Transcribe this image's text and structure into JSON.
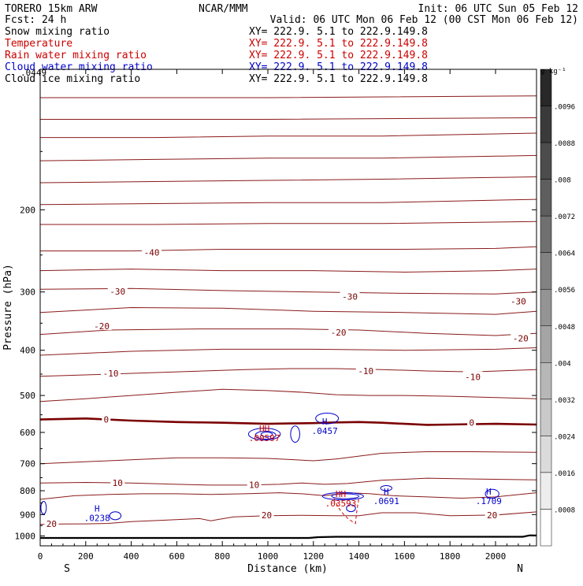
{
  "header": {
    "model": "TORERO  15km ARW",
    "center": "NCAR/MMM",
    "init": "Init: 06 UTC Sun 05 Feb 12",
    "fcst": "Fcst:   24 h",
    "valid": "Valid: 06 UTC Mon 06 Feb 12 (00 CST Mon 06 Feb 12)"
  },
  "legend": [
    {
      "label": "Snow mixing ratio",
      "xy": "",
      "color": "#000000"
    },
    {
      "label": "Temperature",
      "xy": "XY= 222.9.  5.1 to 222.9.149.8",
      "color": "#cc0000"
    },
    {
      "label": "Rain water mixing ratio",
      "xy": "XY= 222.9.  5.1 to 222.9.149.8",
      "color": "#cc0000"
    },
    {
      "label": "Cloud water mixing ratio",
      "xy": "XY= 222.9.  5.1 to 222.9.149.8",
      "color": "#0000cc"
    },
    {
      "label": "Cloud ice mixing ratio",
      "xy": "XY= 222.9.  5.1 to 222.9.149.8",
      "color": "#000000"
    }
  ],
  "snow_xy": "XY= 222.9.  5.1 to 222.9.149.8",
  "chart_data": {
    "type": "cross-section contour",
    "xlabel": "Distance (km)",
    "ylabel": "Pressure (hPa)",
    "xlim": [
      0,
      2180
    ],
    "ylim": [
      1050,
      100
    ],
    "x_ticks": [
      0,
      200,
      400,
      600,
      800,
      1000,
      1200,
      1400,
      1600,
      1800,
      2000
    ],
    "y_ticks": [
      200,
      300,
      400,
      500,
      600,
      700,
      800,
      900,
      1000
    ],
    "x_ends": {
      "left": "S",
      "right": "N"
    },
    "temperature_isotherms": [
      {
        "value": 20,
        "points": [
          [
            0,
            945
          ],
          [
            100,
            943
          ],
          [
            200,
            942
          ],
          [
            300,
            940
          ],
          [
            400,
            932
          ],
          [
            550,
            925
          ],
          [
            700,
            918
          ],
          [
            750,
            928
          ],
          [
            780,
            922
          ],
          [
            850,
            910
          ],
          [
            1000,
            905
          ],
          [
            1150,
            903
          ],
          [
            1300,
            905
          ],
          [
            1400,
            905
          ],
          [
            1500,
            892
          ],
          [
            1650,
            892
          ],
          [
            1800,
            905
          ],
          [
            2000,
            902
          ],
          [
            2180,
            888
          ]
        ]
      },
      {
        "value": 15,
        "points": [
          [
            0,
            835
          ],
          [
            150,
            820
          ],
          [
            300,
            815
          ],
          [
            450,
            812
          ],
          [
            600,
            812
          ],
          [
            750,
            815
          ],
          [
            900,
            812
          ],
          [
            1050,
            808
          ],
          [
            1150,
            812
          ],
          [
            1250,
            820
          ],
          [
            1350,
            808
          ],
          [
            1450,
            812
          ],
          [
            1550,
            820
          ],
          [
            1700,
            825
          ],
          [
            1850,
            830
          ],
          [
            2000,
            825
          ],
          [
            2180,
            808
          ]
        ]
      },
      {
        "value": 10,
        "points": [
          [
            0,
            770
          ],
          [
            200,
            768
          ],
          [
            400,
            770
          ],
          [
            600,
            775
          ],
          [
            750,
            778
          ],
          [
            900,
            778
          ],
          [
            1050,
            775
          ],
          [
            1150,
            770
          ],
          [
            1250,
            775
          ],
          [
            1350,
            772
          ],
          [
            1500,
            760
          ],
          [
            1700,
            752
          ],
          [
            1900,
            755
          ],
          [
            2180,
            758
          ]
        ]
      },
      {
        "value": 5,
        "points": [
          [
            0,
            700
          ],
          [
            300,
            690
          ],
          [
            600,
            680
          ],
          [
            800,
            680
          ],
          [
            1000,
            682
          ],
          [
            1200,
            690
          ],
          [
            1300,
            684
          ],
          [
            1500,
            665
          ],
          [
            1700,
            660
          ],
          [
            1900,
            660
          ],
          [
            2180,
            662
          ]
        ]
      },
      {
        "value": 0,
        "points": [
          [
            0,
            563
          ],
          [
            200,
            560
          ],
          [
            400,
            566
          ],
          [
            600,
            570
          ],
          [
            800,
            572
          ],
          [
            1000,
            575
          ],
          [
            1100,
            574
          ],
          [
            1200,
            573
          ],
          [
            1300,
            571
          ],
          [
            1400,
            570
          ],
          [
            1500,
            572
          ],
          [
            1600,
            575
          ],
          [
            1700,
            578
          ],
          [
            1800,
            577
          ],
          [
            1900,
            576
          ],
          [
            2000,
            575
          ],
          [
            2180,
            577
          ]
        ]
      },
      {
        "value": -5,
        "points": [
          [
            0,
            515
          ],
          [
            200,
            508
          ],
          [
            400,
            500
          ],
          [
            600,
            492
          ],
          [
            800,
            485
          ],
          [
            1000,
            488
          ],
          [
            1150,
            492
          ],
          [
            1300,
            498
          ],
          [
            1450,
            500
          ],
          [
            1600,
            500
          ],
          [
            1800,
            502
          ],
          [
            2000,
            505
          ],
          [
            2180,
            508
          ]
        ]
      },
      {
        "value": -10,
        "points": [
          [
            0,
            455
          ],
          [
            300,
            450
          ],
          [
            600,
            445
          ],
          [
            900,
            440
          ],
          [
            1100,
            438
          ],
          [
            1300,
            438
          ],
          [
            1500,
            440
          ],
          [
            1700,
            443
          ],
          [
            1900,
            445
          ],
          [
            2180,
            440
          ]
        ]
      },
      {
        "value": -15,
        "points": [
          [
            0,
            410
          ],
          [
            400,
            402
          ],
          [
            800,
            398
          ],
          [
            1200,
            398
          ],
          [
            1600,
            400
          ],
          [
            2000,
            398
          ],
          [
            2180,
            395
          ]
        ]
      },
      {
        "value": -20,
        "points": [
          [
            0,
            370
          ],
          [
            300,
            362
          ],
          [
            700,
            360
          ],
          [
            1100,
            360
          ],
          [
            1400,
            362
          ],
          [
            1700,
            368
          ],
          [
            2000,
            372
          ],
          [
            2180,
            368
          ]
        ]
      },
      {
        "value": -25,
        "points": [
          [
            0,
            332
          ],
          [
            400,
            324
          ],
          [
            800,
            325
          ],
          [
            1200,
            330
          ],
          [
            1600,
            332
          ],
          [
            2000,
            335
          ],
          [
            2180,
            330
          ]
        ]
      },
      {
        "value": -30,
        "points": [
          [
            0,
            296
          ],
          [
            400,
            295
          ],
          [
            800,
            298
          ],
          [
            1200,
            300
          ],
          [
            1600,
            302
          ],
          [
            2000,
            303
          ],
          [
            2180,
            300
          ]
        ]
      },
      {
        "value": -35,
        "points": [
          [
            0,
            270
          ],
          [
            400,
            268
          ],
          [
            800,
            270
          ],
          [
            1200,
            270
          ],
          [
            1600,
            272
          ],
          [
            2000,
            270
          ],
          [
            2180,
            268
          ]
        ]
      },
      {
        "value": -40,
        "points": [
          [
            0,
            245
          ],
          [
            400,
            245
          ],
          [
            800,
            243
          ],
          [
            1200,
            243
          ],
          [
            1600,
            243
          ],
          [
            2000,
            242
          ],
          [
            2180,
            240
          ]
        ]
      },
      {
        "value": -45,
        "points": [
          [
            0,
            215
          ],
          [
            500,
            215
          ],
          [
            1000,
            214
          ],
          [
            1500,
            214
          ],
          [
            2180,
            212
          ]
        ]
      },
      {
        "value": -50,
        "points": [
          [
            0,
            195
          ],
          [
            500,
            194
          ],
          [
            1000,
            193
          ],
          [
            1500,
            193
          ],
          [
            2180,
            190
          ]
        ]
      },
      {
        "value": -55,
        "points": [
          [
            0,
            175
          ],
          [
            500,
            174
          ],
          [
            1000,
            173
          ],
          [
            1500,
            172
          ],
          [
            2180,
            170
          ]
        ]
      },
      {
        "value": -60,
        "points": [
          [
            0,
            157
          ],
          [
            500,
            156
          ],
          [
            1000,
            155
          ],
          [
            1500,
            155
          ],
          [
            2180,
            153
          ]
        ]
      },
      {
        "value": -65,
        "points": [
          [
            0,
            140
          ],
          [
            500,
            140
          ],
          [
            1000,
            139
          ],
          [
            1500,
            139
          ],
          [
            2180,
            137
          ]
        ]
      },
      {
        "value": -70,
        "points": [
          [
            0,
            128
          ],
          [
            1000,
            128
          ],
          [
            2180,
            127
          ]
        ]
      },
      {
        "value": -75,
        "points": [
          [
            0,
            115
          ],
          [
            1000,
            115
          ],
          [
            2180,
            114
          ]
        ]
      }
    ],
    "isotherm_labels": [
      {
        "text": "-40",
        "x": 490,
        "p": 247
      },
      {
        "text": "-30",
        "x": 340,
        "p": 299
      },
      {
        "text": "-30",
        "x": 1360,
        "p": 307
      },
      {
        "text": "-30",
        "x": 2100,
        "p": 314
      },
      {
        "text": "-20",
        "x": 270,
        "p": 355
      },
      {
        "text": "-20",
        "x": 1310,
        "p": 366
      },
      {
        "text": "-20",
        "x": 2110,
        "p": 377
      },
      {
        "text": "-10",
        "x": 310,
        "p": 448
      },
      {
        "text": "-10",
        "x": 1430,
        "p": 443
      },
      {
        "text": "-10",
        "x": 1900,
        "p": 456
      },
      {
        "text": "0",
        "x": 290,
        "p": 563
      },
      {
        "text": "0",
        "x": 1895,
        "p": 572
      },
      {
        "text": "10",
        "x": 340,
        "p": 770
      },
      {
        "text": "10",
        "x": 940,
        "p": 777
      },
      {
        "text": "20",
        "x": 50,
        "p": 942
      },
      {
        "text": "20",
        "x": 995,
        "p": 903
      },
      {
        "text": "20",
        "x": 1985,
        "p": 902
      }
    ],
    "cloud_water_maxima": [
      {
        "label": "H",
        "value": ".0238",
        "x": 250,
        "p": 886
      },
      {
        "label": "H",
        "value": ".0457",
        "x": 1250,
        "p": 577
      },
      {
        "label": "H",
        "value": ".0691",
        "x": 1520,
        "p": 815
      },
      {
        "label": "H",
        "value": ".1709",
        "x": 1970,
        "p": 815
      }
    ],
    "overlap_maxima": [
      {
        "label": "HH",
        "value": ".00597",
        "x": 985,
        "p": 598
      },
      {
        "label": "HH",
        "value": ".03593",
        "x": 1320,
        "p": 825
      }
    ],
    "corner_value": ".0449",
    "colorbar": {
      "unit": "g kg⁻¹",
      "labels": [
        ".0096",
        ".0088",
        ".008",
        ".0072",
        ".0064",
        ".0056",
        ".0048",
        ".004",
        ".0032",
        ".0024",
        ".0016",
        ".0008"
      ]
    }
  }
}
